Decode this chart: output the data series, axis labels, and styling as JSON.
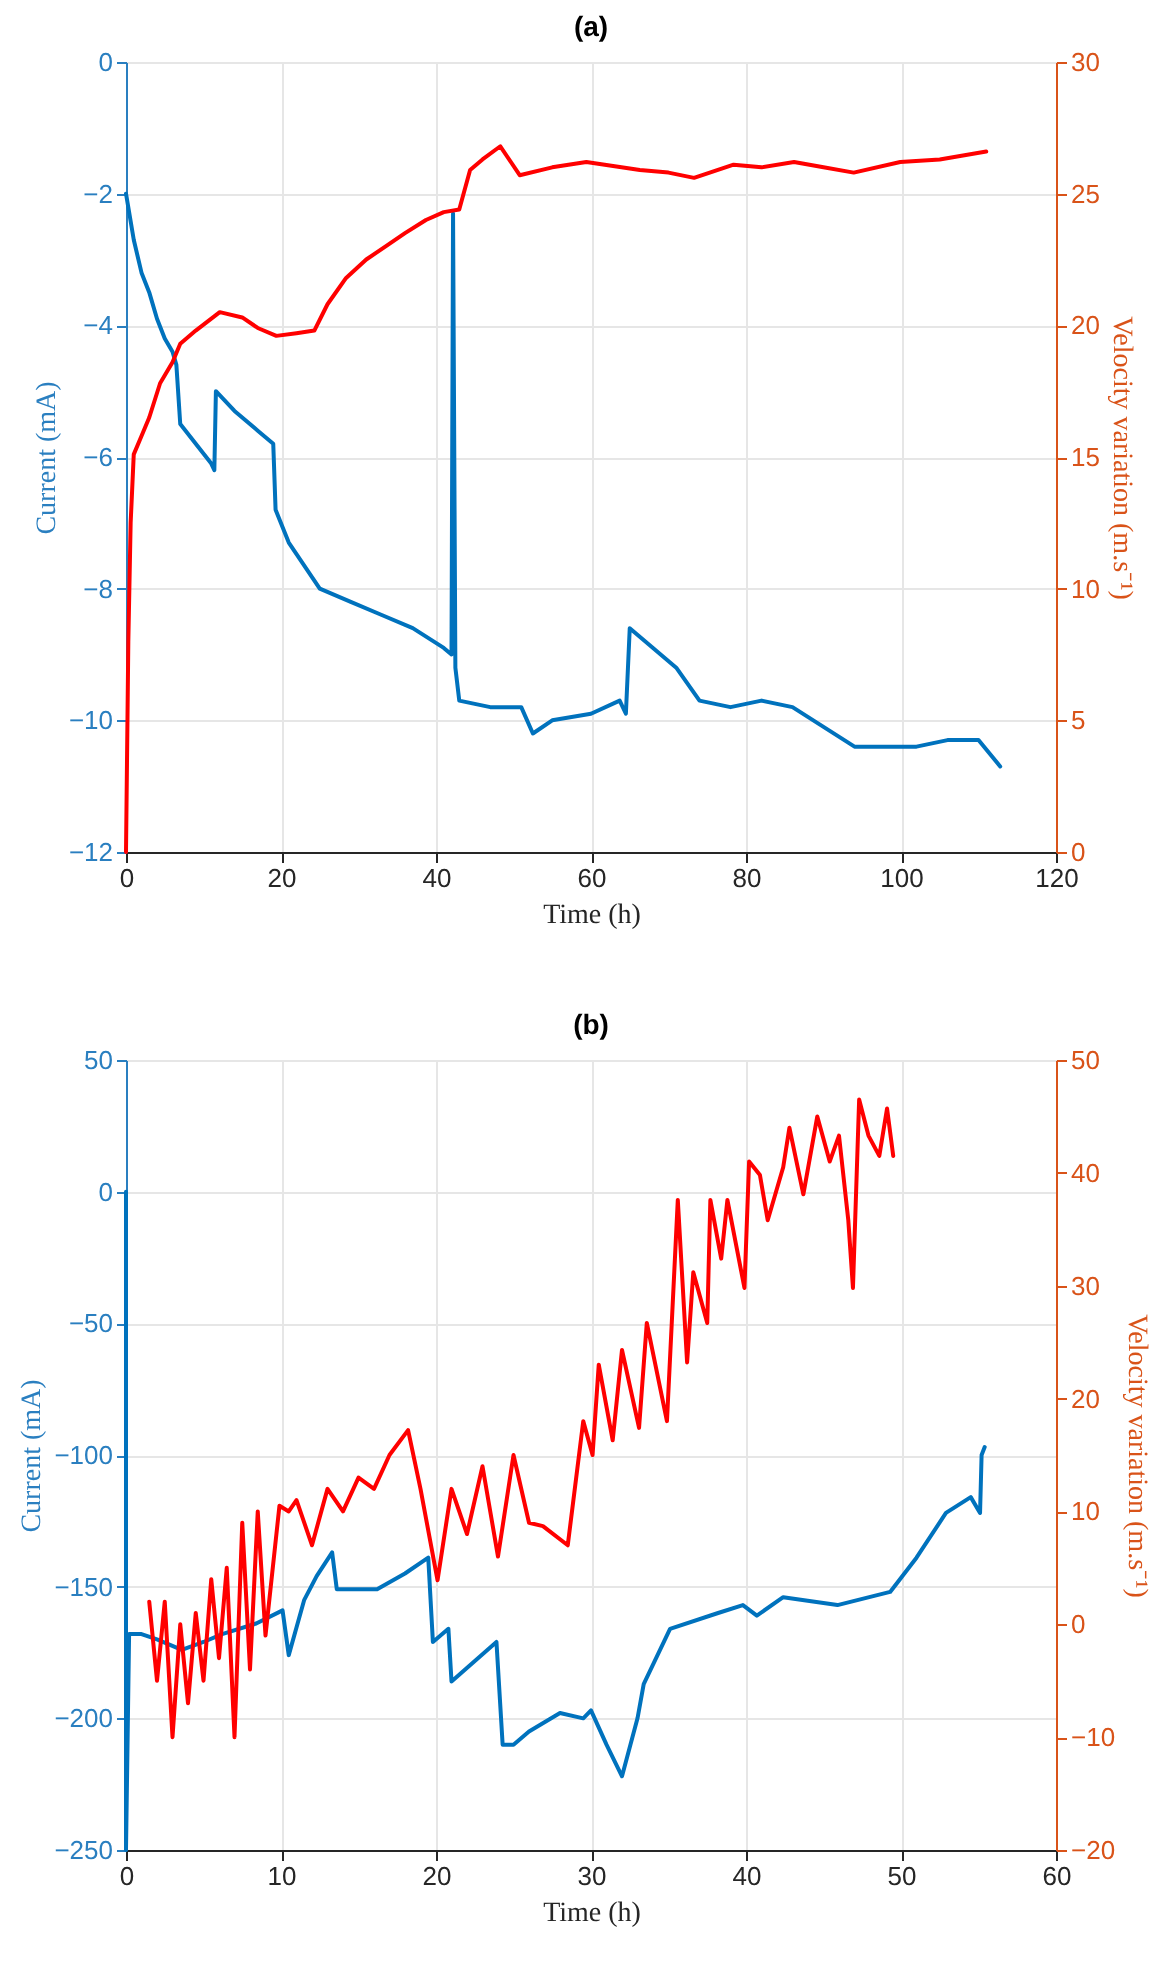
{
  "chart_data": [
    {
      "type": "line",
      "title": "(a)",
      "xlabel": "Time (h)",
      "ylabel": "Current (mA)",
      "y2label": "Velocity variation (m.s⁻¹)",
      "xlim": [
        0,
        120
      ],
      "xticks": [
        0,
        20,
        40,
        60,
        80,
        100,
        120
      ],
      "ylim": [
        -12,
        0
      ],
      "yticks": [
        -12,
        -10,
        -8,
        -6,
        -4,
        -2,
        0
      ],
      "y2lim": [
        0,
        30
      ],
      "y2ticks": [
        0,
        5,
        10,
        15,
        20,
        25,
        30
      ],
      "grid": true,
      "series": [
        {
          "color": "#0072bd",
          "x": [
            0,
            1,
            2,
            3,
            4,
            5,
            6,
            6.5,
            7,
            9,
            11,
            11.4,
            11.6,
            14,
            17,
            19,
            19.3,
            21,
            25,
            29,
            33,
            37,
            41,
            42,
            42.2,
            42.5,
            43,
            47,
            51,
            52.5,
            55,
            60,
            63.7,
            64.5,
            65,
            68,
            71,
            74,
            78,
            82,
            86,
            90,
            94,
            98,
            102,
            106,
            110,
            112.8
          ],
          "values": [
            -2.0,
            -2.7,
            -3.2,
            -3.5,
            -3.9,
            -4.2,
            -4.4,
            -4.6,
            -5.5,
            -5.8,
            -6.1,
            -6.2,
            -5.0,
            -5.3,
            -5.6,
            -5.8,
            -6.8,
            -7.3,
            -8.0,
            -8.2,
            -8.4,
            -8.6,
            -8.9,
            -9.0,
            -2.3,
            -9.2,
            -9.7,
            -9.8,
            -9.8,
            -10.2,
            -10.0,
            -9.9,
            -9.7,
            -9.9,
            -8.6,
            -8.9,
            -9.2,
            -9.7,
            -9.8,
            -9.7,
            -9.8,
            -10.1,
            -10.4,
            -10.4,
            -10.4,
            -10.3,
            -10.3,
            -10.7
          ]
        },
        {
          "color": "#ff0000",
          "axis": "y2",
          "x": [
            0,
            0.3,
            0.6,
            1,
            2,
            3,
            4.4,
            6,
            7,
            9,
            12.1,
            15,
            17,
            19.4,
            22,
            24.3,
            26,
            28.4,
            31,
            33.5,
            36,
            38.7,
            41,
            43,
            44.4,
            46,
            48.3,
            50.8,
            55,
            59.4,
            66.3,
            70,
            73.3,
            78.4,
            82,
            86.2,
            90,
            93.9,
            99.9,
            105,
            111
          ],
          "values": [
            0,
            8,
            12.5,
            15.1,
            15.8,
            16.5,
            17.8,
            18.6,
            19.3,
            19.8,
            20.5,
            20.3,
            19.9,
            19.6,
            19.7,
            19.8,
            20.8,
            21.8,
            22.5,
            23,
            23.5,
            24,
            24.3,
            24.4,
            25.9,
            26.3,
            26.8,
            25.7,
            26.0,
            26.2,
            25.9,
            25.8,
            25.6,
            26.1,
            26.0,
            26.2,
            26.0,
            25.8,
            26.2,
            26.3,
            26.6
          ]
        }
      ]
    },
    {
      "type": "line",
      "title": "(b)",
      "xlabel": "Time (h)",
      "ylabel": "Current (mA)",
      "y2label": "Velocity variation (m.s⁻¹)",
      "xlim": [
        0,
        60
      ],
      "xticks": [
        0,
        10,
        20,
        30,
        40,
        50,
        60
      ],
      "ylim": [
        -250,
        50
      ],
      "yticks": [
        -250,
        -200,
        -150,
        -100,
        -50,
        0,
        50
      ],
      "y2lim": [
        -20,
        50
      ],
      "y2ticks": [
        -20,
        -10,
        0,
        10,
        20,
        30,
        40,
        50
      ],
      "grid": true,
      "series": [
        {
          "color": "#0072bd",
          "x": [
            0,
            0,
            0.2,
            1,
            2,
            3.6,
            5,
            6.2,
            8.4,
            10.1,
            10.5,
            11.5,
            12.3,
            13.3,
            13.6,
            16.2,
            18,
            19.5,
            19.8,
            20.8,
            21,
            23.9,
            24.3,
            25,
            26,
            28,
            29.5,
            30,
            31,
            32,
            33,
            33.4,
            35.1,
            38.2,
            39.8,
            40.7,
            42.4,
            45.9,
            49.3,
            51,
            52.9,
            54.5,
            55.1,
            55.2,
            55.4
          ],
          "values": [
            0,
            -250,
            -168,
            -168,
            -170,
            -174,
            -171,
            -168,
            -164,
            -159,
            -176,
            -155,
            -146,
            -137,
            -151,
            -151,
            -145,
            -139,
            -171,
            -166,
            -186,
            -171,
            -210,
            -210,
            -205,
            -198,
            -200,
            -197,
            -210,
            -222,
            -200,
            -187,
            -166,
            -160,
            -157,
            -161,
            -154,
            -157,
            -152,
            -139,
            -122,
            -116,
            -122,
            -100,
            -97
          ]
        },
        {
          "color": "#ff0000",
          "axis": "y2",
          "x": [
            1.5,
            2,
            2.5,
            3,
            3.5,
            4,
            4.5,
            5,
            5.5,
            6,
            6.5,
            7,
            7.5,
            8,
            8.5,
            9,
            9.9,
            10.5,
            11,
            12,
            13,
            14,
            15,
            16,
            17,
            18.2,
            19,
            20.1,
            21,
            22,
            23,
            24,
            25,
            26,
            26.9,
            28.5,
            29.5,
            30.1,
            30.5,
            31.4,
            32,
            33.1,
            33.6,
            34.9,
            35.6,
            36.2,
            36.6,
            37.5,
            37.7,
            38.4,
            38.8,
            39.9,
            40.2,
            40.9,
            41.4,
            42.4,
            42.8,
            43.7,
            44.6,
            45.4,
            46,
            46.6,
            46.9,
            47.3,
            47.9,
            48.6,
            49.1,
            49.5
          ],
          "values": [
            2,
            -5,
            2,
            -10,
            0,
            -7,
            1,
            -5,
            4,
            -3,
            5,
            -10,
            9,
            -4,
            10,
            -1,
            10.5,
            10,
            11,
            7,
            12,
            10,
            13,
            12,
            15,
            17.2,
            12,
            3.9,
            12,
            8,
            14,
            6,
            15,
            9,
            8.7,
            7,
            18,
            15,
            23,
            16.3,
            24.3,
            17.4,
            26.7,
            18,
            37.6,
            23.2,
            31.2,
            26.7,
            37.6,
            32.4,
            37.6,
            29.8,
            41,
            39.8,
            35.8,
            40.5,
            44,
            38.1,
            45,
            41,
            43.3,
            35.8,
            29.8,
            46.5,
            43.3,
            41.5,
            45.7,
            41.5
          ]
        }
      ]
    }
  ]
}
